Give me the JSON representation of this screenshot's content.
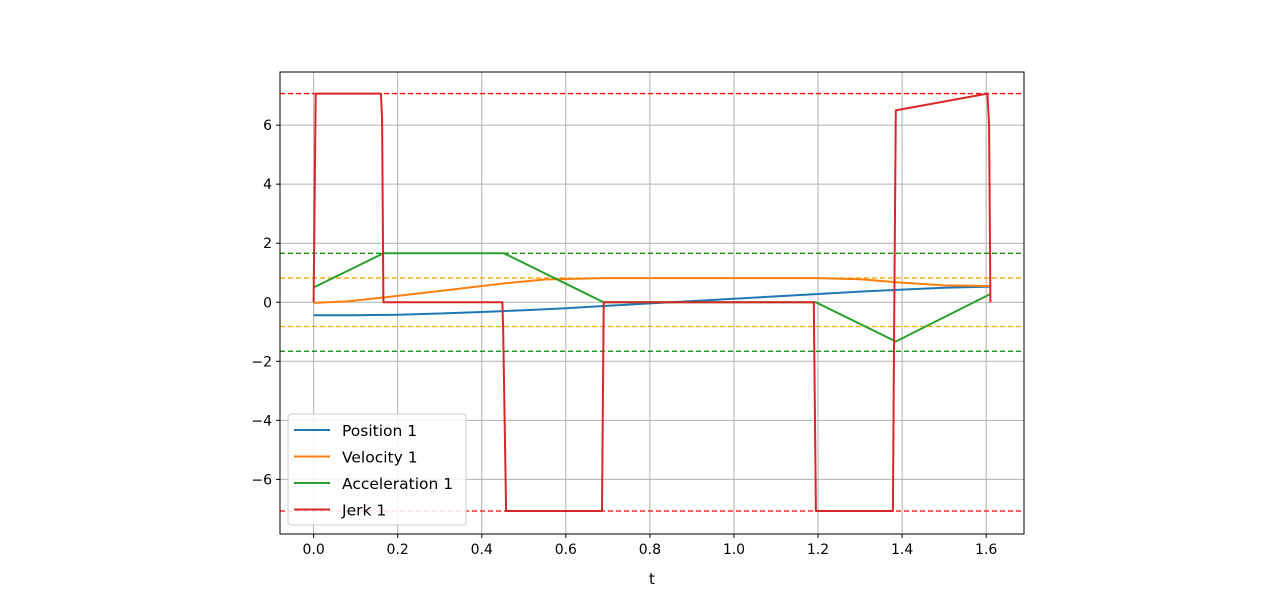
{
  "chart_data": {
    "type": "line",
    "title": "",
    "xlabel": "t",
    "ylabel": "",
    "xlim": [
      -0.08,
      1.69
    ],
    "ylim": [
      -7.85,
      7.8
    ],
    "xticks": [
      0.0,
      0.2,
      0.4,
      0.6,
      0.8,
      1.0,
      1.2,
      1.4,
      1.6
    ],
    "xtick_labels": [
      "0.0",
      "0.2",
      "0.4",
      "0.6",
      "0.8",
      "1.0",
      "1.2",
      "1.4",
      "1.6"
    ],
    "yticks": [
      -6,
      -4,
      -2,
      0,
      2,
      4,
      6
    ],
    "ytick_labels": [
      "−6",
      "−4",
      "−2",
      "0",
      "2",
      "4",
      "6"
    ],
    "grid": true,
    "legend_position": "lower-left",
    "series": [
      {
        "name": "Position 1",
        "color": "#1f77b4",
        "x": [
          0,
          0.1,
          0.2,
          0.3,
          0.4,
          0.5,
          0.6,
          0.7,
          0.8,
          0.9,
          1.0,
          1.1,
          1.2,
          1.3,
          1.4,
          1.5,
          1.61
        ],
        "y": [
          -0.44,
          -0.44,
          -0.42,
          -0.38,
          -0.33,
          -0.27,
          -0.2,
          -0.12,
          -0.04,
          0.04,
          0.12,
          0.2,
          0.28,
          0.36,
          0.43,
          0.49,
          0.53
        ]
      },
      {
        "name": "Velocity 1",
        "color": "#ff7f0e",
        "x": [
          0,
          0.08,
          0.166,
          0.3,
          0.453,
          0.55,
          0.69,
          1.0,
          1.2,
          1.3,
          1.385,
          1.5,
          1.61
        ],
        "y": [
          -0.02,
          0.03,
          0.16,
          0.38,
          0.64,
          0.77,
          0.82,
          0.82,
          0.82,
          0.78,
          0.68,
          0.57,
          0.55
        ]
      },
      {
        "name": "Acceleration 1",
        "color": "#2ca02c",
        "x": [
          0,
          0.166,
          0.453,
          0.69,
          1.195,
          1.385,
          1.61
        ],
        "y": [
          0.5,
          1.66,
          1.66,
          0.0,
          0.0,
          -1.33,
          0.28
        ]
      },
      {
        "name": "Jerk 1",
        "color": "#d62728",
        "x": [
          0,
          0.005,
          0.16,
          0.163,
          0.166,
          0.449,
          0.451,
          0.458,
          0.686,
          0.69,
          1.19,
          1.195,
          1.378,
          1.381,
          1.385,
          1.603,
          1.607,
          1.61
        ],
        "y": [
          0.0,
          7.07,
          7.07,
          6.2,
          0.0,
          0.0,
          -1.0,
          -7.07,
          -7.07,
          0.0,
          0.0,
          -7.07,
          -7.07,
          -1.0,
          6.5,
          7.07,
          6.0,
          0.0
        ]
      }
    ],
    "reference_lines": [
      {
        "y": 7.07,
        "color": "#ff0000"
      },
      {
        "y": -7.07,
        "color": "#ff0000"
      },
      {
        "y": 1.66,
        "color": "#008000"
      },
      {
        "y": -1.66,
        "color": "#008000"
      },
      {
        "y": 0.82,
        "color": "#ffa500"
      },
      {
        "y": -0.82,
        "color": "#ffa500"
      }
    ]
  }
}
